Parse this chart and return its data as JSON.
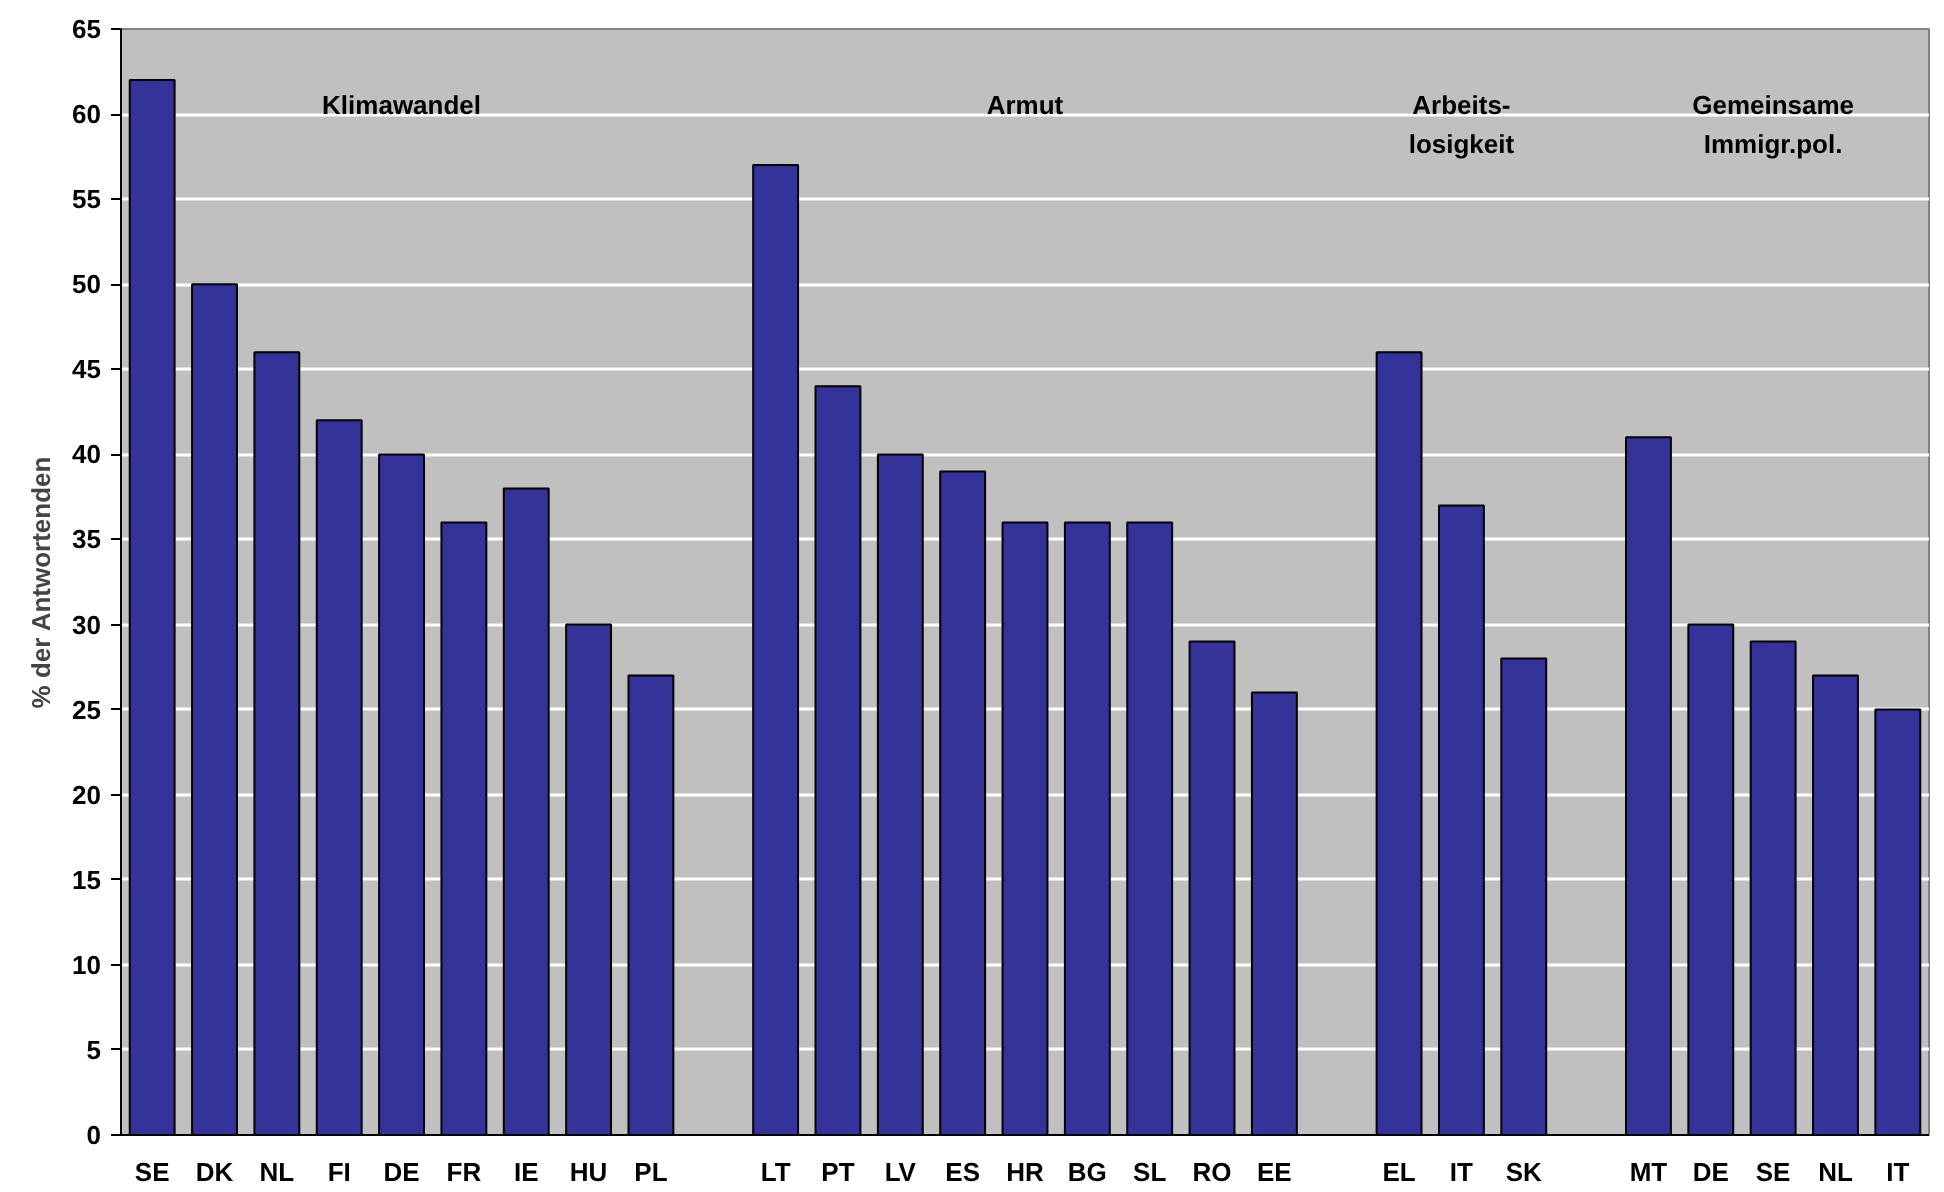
{
  "chart_data": {
    "type": "bar",
    "ylabel": "% der Antwortenden",
    "categories": [
      "SE",
      "DK",
      "NL",
      "FI",
      "DE",
      "FR",
      "IE",
      "HU",
      "PL",
      null,
      "LT",
      "PT",
      "LV",
      "ES",
      "HR",
      "BG",
      "SL",
      "RO",
      "EE",
      null,
      "EL",
      "IT",
      "SK",
      null,
      "MT",
      "DE",
      "SE",
      "NL",
      "IT"
    ],
    "values": [
      62,
      50,
      46,
      42,
      40,
      36,
      38,
      30,
      27,
      null,
      57,
      44,
      40,
      39,
      36,
      36,
      36,
      29,
      26,
      null,
      46,
      37,
      28,
      null,
      41,
      30,
      29,
      27,
      25
    ],
    "color": "#333399",
    "ylim": [
      0,
      65
    ],
    "yticks": [
      0,
      5,
      10,
      15,
      20,
      25,
      30,
      35,
      40,
      45,
      50,
      55,
      60,
      65
    ],
    "grid": "y",
    "annotations": [
      "Klimawandel",
      "Armut",
      "Arbeits-\nlosigkeit",
      "Gemeinsame\nImmigr.pol."
    ]
  }
}
